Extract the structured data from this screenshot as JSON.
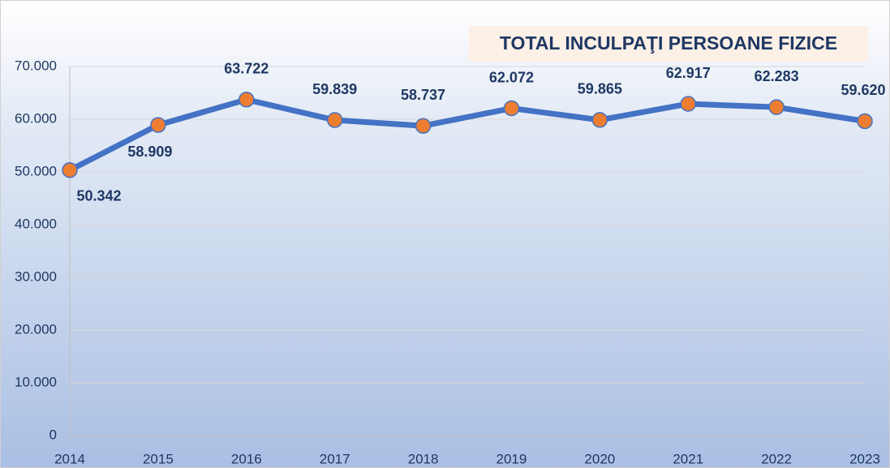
{
  "chart_data": {
    "type": "line",
    "title": "TOTAL INCULPAŢI PERSOANE FIZICE",
    "categories": [
      "2014",
      "2015",
      "2016",
      "2017",
      "2018",
      "2019",
      "2020",
      "2021",
      "2022",
      "2023"
    ],
    "series": [
      {
        "name": "TOTAL INCULPAŢI PERSOANE FIZICE",
        "color": "#4472c4",
        "marker_color": "#ed7d31",
        "values": [
          50342,
          58909,
          63722,
          59839,
          58737,
          62072,
          59865,
          62917,
          62283,
          59620
        ],
        "value_labels": [
          "50.342",
          "58.909",
          "63.722",
          "59.839",
          "58.737",
          "62.072",
          "59.865",
          "62.917",
          "62.283",
          "59.620"
        ]
      }
    ],
    "ylim": [
      0,
      70000
    ],
    "yticks": [
      0,
      {
        "value": 10000,
        "label": "10.000"
      },
      {
        "value": 20000,
        "label": "20.000"
      },
      {
        "value": 30000,
        "label": "30.000"
      },
      {
        "value": 40000,
        "label": "40.000"
      },
      {
        "value": 50000,
        "label": "50.000"
      },
      {
        "value": 60000,
        "label": "60.000"
      },
      {
        "value": 70000,
        "label": "70.000"
      }
    ],
    "grid": true
  }
}
